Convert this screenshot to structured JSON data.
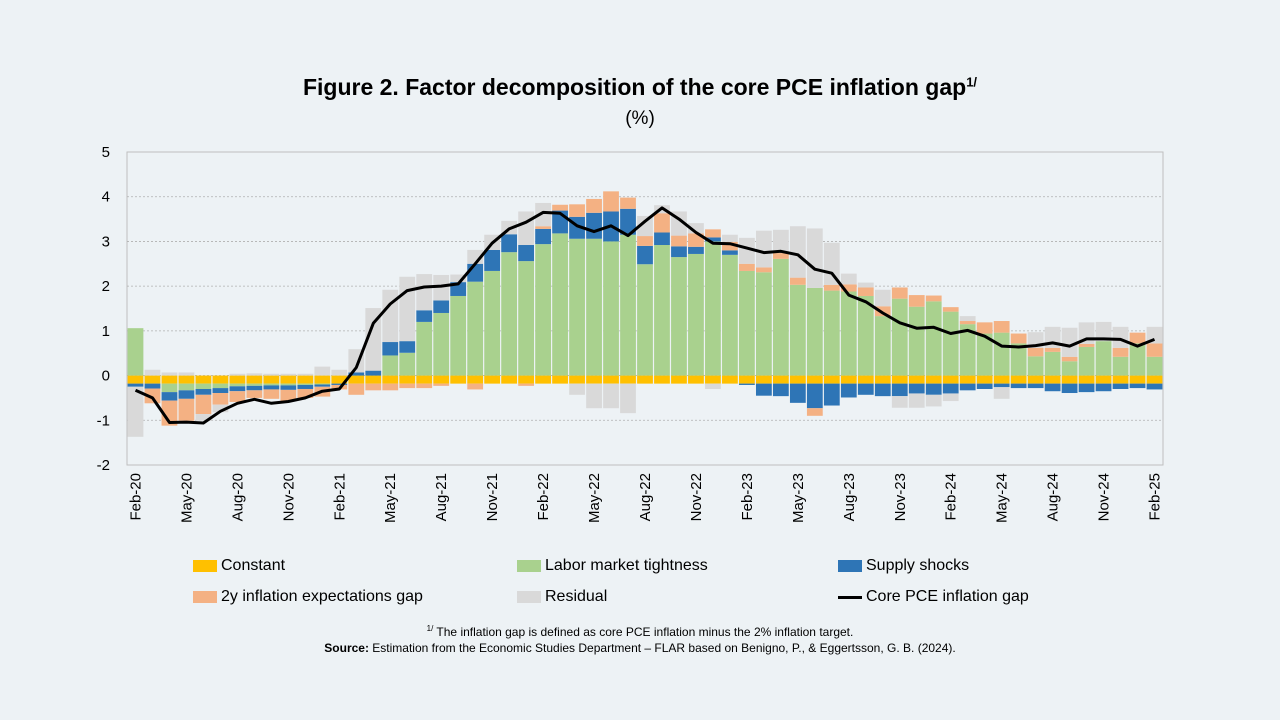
{
  "title": "Figure 2. Factor decomposition of the core PCE inflation gap",
  "title_sup": "1/",
  "subtitle": "(%)",
  "footnote": {
    "sup": "1/",
    "text": " The inflation gap is defined as core PCE inflation minus the 2% inflation target."
  },
  "source": {
    "label": "Source:",
    "text": " Estimation from the Economic Studies Department – FLAR based on Benigno, P., & Eggertsson, G. B. (2024)."
  },
  "chart_data": {
    "type": "bar",
    "stacked": true,
    "title": "Figure 2. Factor decomposition of the core PCE inflation gap",
    "ylabel": "(%)",
    "ylim": [
      -2,
      5
    ],
    "yticks": [
      5,
      4,
      3,
      2,
      1,
      0,
      -1,
      -2
    ],
    "grid": true,
    "legend_position": "bottom",
    "categories": [
      "Feb-20",
      "Mar-20",
      "Apr-20",
      "May-20",
      "Jun-20",
      "Jul-20",
      "Aug-20",
      "Sep-20",
      "Oct-20",
      "Nov-20",
      "Dec-20",
      "Jan-21",
      "Feb-21",
      "Mar-21",
      "Apr-21",
      "May-21",
      "Jun-21",
      "Jul-21",
      "Aug-21",
      "Sep-21",
      "Oct-21",
      "Nov-21",
      "Dec-21",
      "Jan-22",
      "Feb-22",
      "Mar-22",
      "Apr-22",
      "May-22",
      "Jun-22",
      "Jul-22",
      "Aug-22",
      "Sep-22",
      "Oct-22",
      "Nov-22",
      "Dec-22",
      "Jan-23",
      "Feb-23",
      "Mar-23",
      "Apr-23",
      "May-23",
      "Jun-23",
      "Jul-23",
      "Aug-23",
      "Sep-23",
      "Oct-23",
      "Nov-23",
      "Dec-23",
      "Jan-24",
      "Feb-24",
      "Mar-24",
      "Apr-24",
      "May-24",
      "Jun-24",
      "Jul-24",
      "Aug-24",
      "Sep-24",
      "Oct-24",
      "Nov-24",
      "Dec-24",
      "Jan-25",
      "Feb-25"
    ],
    "xtick_labels": [
      "Feb-20",
      "May-20",
      "Aug-20",
      "Nov-20",
      "Feb-21",
      "May-21",
      "Aug-21",
      "Nov-21",
      "Feb-22",
      "May-22",
      "Aug-22",
      "Nov-22",
      "Feb-23",
      "May-23",
      "Aug-23",
      "Nov-23",
      "Feb-24",
      "May-24",
      "Aug-24",
      "Nov-24",
      "Feb-25"
    ],
    "series": [
      {
        "name": "Constant",
        "type": "bar",
        "color": "#FFC000",
        "values": [
          -0.18,
          -0.18,
          -0.18,
          -0.18,
          -0.18,
          -0.18,
          -0.18,
          -0.18,
          -0.18,
          -0.18,
          -0.18,
          -0.18,
          -0.18,
          -0.18,
          -0.18,
          -0.18,
          -0.18,
          -0.18,
          -0.18,
          -0.18,
          -0.18,
          -0.18,
          -0.18,
          -0.18,
          -0.18,
          -0.18,
          -0.18,
          -0.18,
          -0.18,
          -0.18,
          -0.18,
          -0.18,
          -0.18,
          -0.18,
          -0.18,
          -0.18,
          -0.18,
          -0.18,
          -0.18,
          -0.18,
          -0.18,
          -0.18,
          -0.18,
          -0.18,
          -0.18,
          -0.18,
          -0.18,
          -0.18,
          -0.18,
          -0.18,
          -0.18,
          -0.18,
          -0.18,
          -0.18,
          -0.18,
          -0.18,
          -0.18,
          -0.18,
          -0.18,
          -0.18,
          -0.18
        ]
      },
      {
        "name": "Labor market tightness",
        "type": "bar",
        "color": "#A9D18E",
        "values": [
          1.06,
          0,
          -0.19,
          -0.15,
          -0.12,
          -0.1,
          -0.06,
          -0.05,
          -0.04,
          -0.04,
          -0.03,
          -0.02,
          0,
          0,
          0,
          0.45,
          0.51,
          1.2,
          1.4,
          1.78,
          2.1,
          2.34,
          2.76,
          2.56,
          2.94,
          3.18,
          3.06,
          3.06,
          3.0,
          3.15,
          2.49,
          2.92,
          2.65,
          2.72,
          3.0,
          2.7,
          2.34,
          2.31,
          2.61,
          2.03,
          1.96,
          1.9,
          1.88,
          1.78,
          1.33,
          1.72,
          1.54,
          1.66,
          1.43,
          1.15,
          0.94,
          0.96,
          0.72,
          0.43,
          0.53,
          0.32,
          0.64,
          0.77,
          0.42,
          0.72,
          0.42
        ]
      },
      {
        "name": "Supply shocks",
        "type": "bar",
        "color": "#2E75B6",
        "values": [
          -0.07,
          -0.11,
          -0.19,
          -0.19,
          -0.13,
          -0.11,
          -0.11,
          -0.1,
          -0.09,
          -0.1,
          -0.09,
          -0.05,
          -0.03,
          0.07,
          0.11,
          0.3,
          0.26,
          0.26,
          0.28,
          0.31,
          0.4,
          0.47,
          0.4,
          0.36,
          0.34,
          0.51,
          0.49,
          0.58,
          0.67,
          0.58,
          0.41,
          0.28,
          0.24,
          0.16,
          0.09,
          0.1,
          -0.03,
          -0.27,
          -0.28,
          -0.43,
          -0.55,
          -0.49,
          -0.31,
          -0.25,
          -0.28,
          -0.28,
          -0.22,
          -0.25,
          -0.22,
          -0.15,
          -0.12,
          -0.08,
          -0.1,
          -0.1,
          -0.17,
          -0.21,
          -0.19,
          -0.17,
          -0.12,
          -0.1,
          -0.13
        ]
      },
      {
        "name": "2y inflation expectations gap",
        "type": "bar",
        "color": "#F4B183",
        "values": [
          0,
          -0.33,
          -0.56,
          -0.49,
          -0.43,
          -0.26,
          -0.24,
          -0.17,
          -0.21,
          -0.25,
          -0.2,
          -0.22,
          -0.1,
          -0.25,
          -0.15,
          -0.15,
          -0.1,
          -0.1,
          -0.05,
          0,
          -0.13,
          0,
          0,
          -0.05,
          0.06,
          0.13,
          0.28,
          0.31,
          0.45,
          0.25,
          0.22,
          0.43,
          0.24,
          0.3,
          0.18,
          0.19,
          0.16,
          0.11,
          0.13,
          0.16,
          -0.17,
          0.13,
          0.16,
          0.19,
          0.22,
          0.25,
          0.26,
          0.13,
          0.1,
          0.07,
          0.25,
          0.26,
          0.22,
          0.19,
          0.09,
          0.1,
          0.07,
          0,
          0.2,
          0.24,
          0.3
        ]
      },
      {
        "name": "Residual",
        "type": "bar",
        "color": "#D9D9D9",
        "values": [
          -1.12,
          0.13,
          0.07,
          0.07,
          -0.15,
          -0.17,
          0.04,
          0.05,
          0.04,
          0.04,
          0.04,
          0.2,
          0.13,
          0.52,
          1.4,
          1.17,
          1.44,
          0.81,
          0.57,
          0.17,
          0.31,
          0.34,
          0.3,
          0.75,
          0.52,
          0,
          -0.25,
          -0.55,
          -0.55,
          -0.66,
          0.45,
          0.18,
          0.54,
          0.23,
          -0.12,
          0.16,
          0.58,
          0.82,
          0.52,
          1.15,
          1.33,
          0.94,
          0.24,
          0.11,
          0.37,
          -0.26,
          -0.32,
          -0.26,
          -0.17,
          0.11,
          0,
          -0.26,
          0,
          0.35,
          0.47,
          0.65,
          0.48,
          0.43,
          0.47,
          0,
          0.37
        ]
      },
      {
        "name": "Core PCE inflation gap",
        "type": "line",
        "color": "#000000",
        "values": [
          -0.33,
          -0.5,
          -1.05,
          -1.04,
          -1.06,
          -0.8,
          -0.62,
          -0.53,
          -0.62,
          -0.58,
          -0.5,
          -0.35,
          -0.3,
          0.18,
          1.17,
          1.6,
          1.9,
          1.98,
          2.0,
          2.05,
          2.5,
          2.96,
          3.28,
          3.43,
          3.65,
          3.63,
          3.35,
          3.22,
          3.35,
          3.13,
          3.45,
          3.75,
          3.5,
          3.2,
          2.96,
          2.95,
          2.85,
          2.75,
          2.78,
          2.7,
          2.38,
          2.29,
          1.8,
          1.65,
          1.4,
          1.18,
          1.06,
          1.08,
          0.94,
          1.01,
          0.88,
          0.66,
          0.64,
          0.67,
          0.73,
          0.66,
          0.82,
          0.82,
          0.81,
          0.66,
          0.81
        ]
      }
    ]
  }
}
